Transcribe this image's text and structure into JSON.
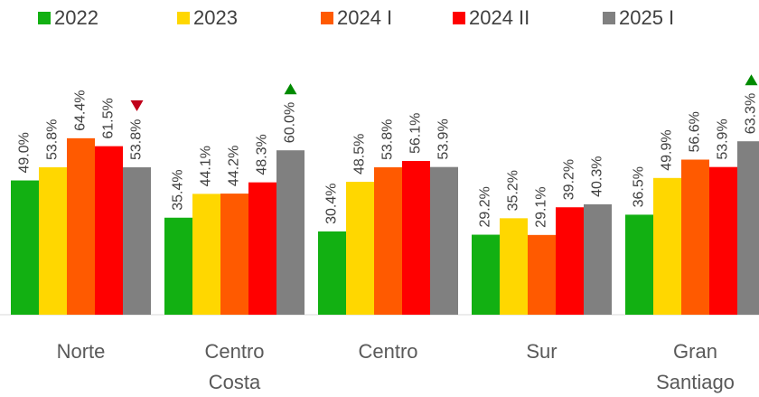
{
  "chart_data": {
    "type": "bar",
    "categories": [
      "Norte",
      "Centro Costa",
      "Centro",
      "Sur",
      "Gran Santiago"
    ],
    "series": [
      {
        "name": "2022",
        "color": "#12b012",
        "values": [
          49.0,
          35.4,
          30.4,
          29.2,
          36.5
        ],
        "value_labels": [
          "49.0%",
          "35.4%",
          "30.4%",
          "29.2%",
          "36.5%"
        ]
      },
      {
        "name": "2023",
        "color": "#ffd700",
        "values": [
          53.8,
          44.1,
          48.5,
          35.2,
          49.9
        ],
        "value_labels": [
          "53.8%",
          "44.1%",
          "48.5%",
          "35.2%",
          "49.9%"
        ]
      },
      {
        "name": "2024 I",
        "color": "#ff5a00",
        "values": [
          64.4,
          44.2,
          53.8,
          29.1,
          56.6
        ],
        "value_labels": [
          "64.4%",
          "44.2%",
          "53.8%",
          "29.1%",
          "56.6%"
        ]
      },
      {
        "name": "2024 II",
        "color": "#ff0000",
        "values": [
          61.5,
          48.3,
          56.1,
          39.2,
          53.9
        ],
        "value_labels": [
          "61.5%",
          "48.3%",
          "56.1%",
          "39.2%",
          "53.9%"
        ]
      },
      {
        "name": "2025 I",
        "color": "#808080",
        "values": [
          53.8,
          60.0,
          53.9,
          40.3,
          63.3
        ],
        "value_labels": [
          "53.8%",
          "60.0%",
          "53.9%",
          "40.3%",
          "63.3%"
        ]
      }
    ],
    "trend": [
      "down",
      "up",
      null,
      null,
      "up"
    ],
    "trend_colors": {
      "up": "#008a00",
      "down": "#c0001a"
    },
    "ylim": [
      0,
      100
    ],
    "legend": "top"
  }
}
